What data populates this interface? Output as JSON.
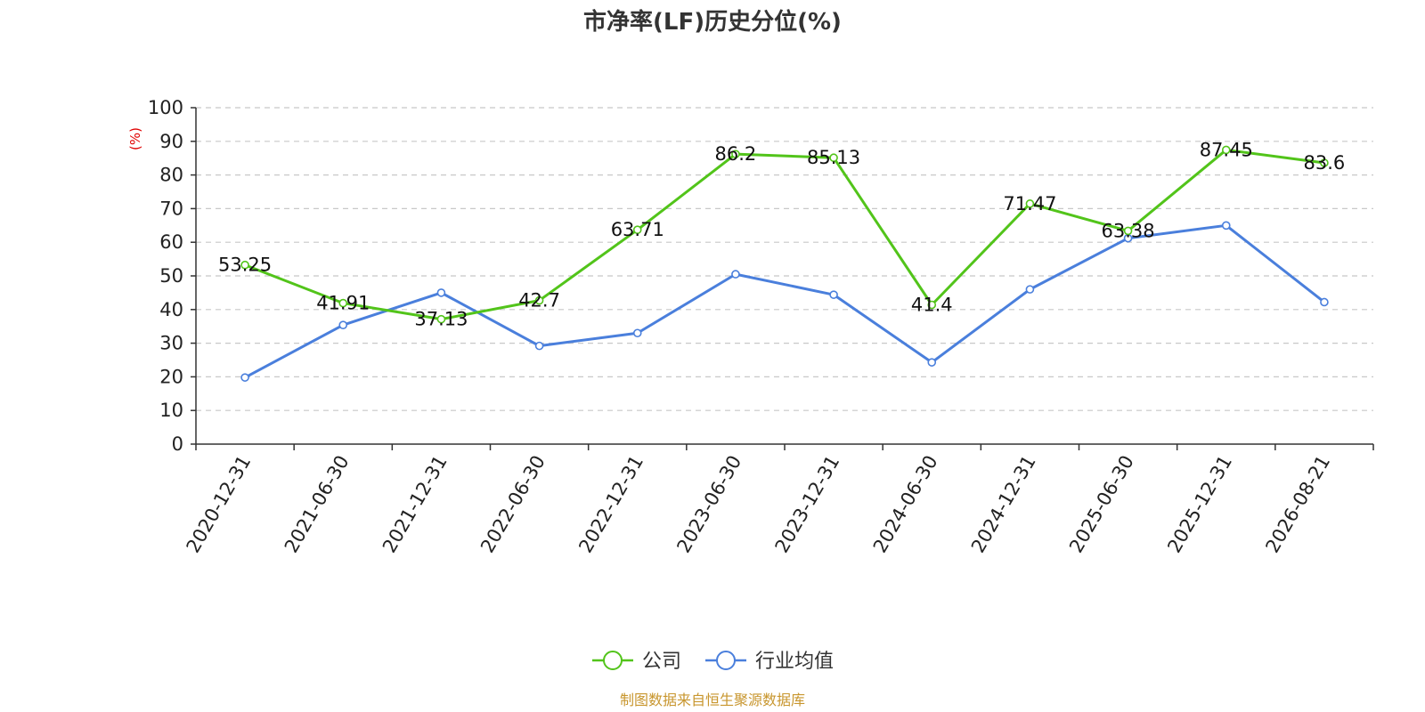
{
  "chart_data": {
    "type": "line",
    "title": "市净率(LF)历史分位(%)",
    "ylabel": "(%)",
    "ylim": [
      0,
      100
    ],
    "yticks": [
      0,
      10,
      20,
      30,
      40,
      50,
      60,
      70,
      80,
      90,
      100
    ],
    "grid": true,
    "legend_position": "bottom",
    "categories": [
      "2020-12-31",
      "2021-06-30",
      "2021-12-31",
      "2022-06-30",
      "2022-12-31",
      "2023-06-30",
      "2023-12-31",
      "2024-06-30",
      "2024-12-31",
      "2025-06-30",
      "2025-12-31",
      "2026-08-21"
    ],
    "series": [
      {
        "name": "公司",
        "color": "#52c41a",
        "show_labels": true,
        "values": [
          53.25,
          41.91,
          37.13,
          42.7,
          63.71,
          86.2,
          85.13,
          41.4,
          71.47,
          63.38,
          87.45,
          83.6
        ],
        "labels": [
          "53.25",
          "41.91",
          "37.13",
          "42.7",
          "63.71",
          "86.2",
          "85.13",
          "41.4",
          "71.47",
          "63.38",
          "87.45",
          "83.6"
        ]
      },
      {
        "name": "行业均值",
        "color": "#4a7fdc",
        "show_labels": false,
        "values": [
          19.8,
          35.4,
          45.0,
          29.2,
          33.0,
          50.5,
          44.4,
          24.3,
          46.0,
          61.2,
          65.0,
          42.2
        ]
      }
    ],
    "source": "制图数据来自恒生聚源数据库"
  }
}
